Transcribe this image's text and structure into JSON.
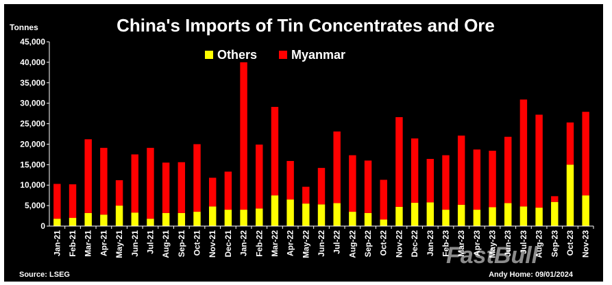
{
  "chart_data": {
    "type": "bar",
    "stacked": true,
    "title": "China's Imports of Tin Concentrates and Ore",
    "ylabel": "Tonnes",
    "xlabel": "",
    "ylim": [
      0,
      45000
    ],
    "yticks": [
      0,
      5000,
      10000,
      15000,
      20000,
      25000,
      30000,
      35000,
      40000,
      45000
    ],
    "ytick_labels": [
      "0",
      "5,000",
      "10,000",
      "15,000",
      "20,000",
      "25,000",
      "30,000",
      "35,000",
      "40,000",
      "45,000"
    ],
    "legend_position": "top",
    "grid": false,
    "categories": [
      "Jan-21",
      "Feb-21",
      "Mar-21",
      "Apr-21",
      "May-21",
      "Jun-21",
      "Jul-21",
      "Aug-21",
      "Sep-21",
      "Oct-21",
      "Nov-21",
      "Dec-21",
      "Jan-22",
      "Feb-22",
      "Mar-22",
      "Apr-22",
      "May-22",
      "Jun-22",
      "Jul-22",
      "Aug-22",
      "Sep-22",
      "Oct-22",
      "Nov-22",
      "Dec-22",
      "Jan-23",
      "Feb-23",
      "Mar-23",
      "Apr-23",
      "May-23",
      "Jun-23",
      "Jul-23",
      "Aug-23",
      "Sep-23",
      "Oct-23",
      "Nov-23"
    ],
    "series": [
      {
        "name": "Others",
        "color": "#ffff00",
        "values": [
          1800,
          2000,
          3200,
          2800,
          5000,
          3300,
          1800,
          3200,
          3200,
          3500,
          4800,
          4000,
          4000,
          4300,
          7500,
          6500,
          5500,
          5300,
          5600,
          3500,
          3200,
          1600,
          4700,
          5700,
          5800,
          4000,
          5200,
          4000,
          4600,
          5600,
          4800,
          4500,
          5900,
          15000,
          7500
        ]
      },
      {
        "name": "Myanmar",
        "color": "#ff0000",
        "values": [
          8500,
          8200,
          18000,
          16300,
          6200,
          14200,
          17300,
          12300,
          12400,
          16500,
          7000,
          9300,
          36000,
          15600,
          21600,
          9400,
          4100,
          8900,
          17500,
          13800,
          12800,
          9700,
          21900,
          15700,
          10600,
          13300,
          16900,
          14700,
          13800,
          16200,
          26100,
          22700,
          1400,
          10300,
          20400
        ]
      }
    ]
  },
  "footer": {
    "source": "Source: LSEG",
    "credit": "Andy Home: 09/01/2024"
  },
  "watermark": "FastBull"
}
